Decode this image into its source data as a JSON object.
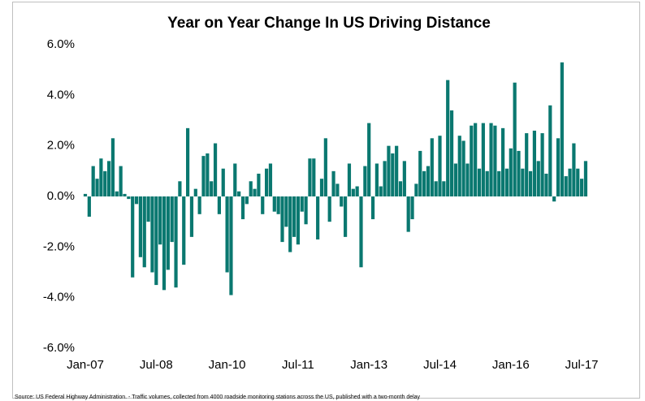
{
  "chart_data": {
    "type": "bar",
    "title": "Year on Year Change In US Driving Distance",
    "source": "Source: US Federal Highway Administration. - Traffic volumes, collected from 4000 roadside monitoring  stations across the US, published with a two-month  delay",
    "color": "#0a7870",
    "categories": [
      "Jan-07",
      null,
      null,
      null,
      null,
      null,
      null,
      null,
      null,
      null,
      null,
      null,
      null,
      null,
      null,
      null,
      null,
      null,
      "Jul-08",
      null,
      null,
      null,
      null,
      null,
      null,
      null,
      null,
      null,
      null,
      null,
      null,
      null,
      null,
      null,
      null,
      null,
      "Jan-10",
      null,
      null,
      null,
      null,
      null,
      null,
      null,
      null,
      null,
      null,
      null,
      null,
      null,
      null,
      null,
      null,
      null,
      "Jul-11",
      null,
      null,
      null,
      null,
      null,
      null,
      null,
      null,
      null,
      null,
      null,
      null,
      null,
      null,
      null,
      null,
      null,
      "Jan-13",
      null,
      null,
      null,
      null,
      null,
      null,
      null,
      null,
      null,
      null,
      null,
      null,
      null,
      null,
      null,
      null,
      null,
      "Jul-14",
      null,
      null,
      null,
      null,
      null,
      null,
      null,
      null,
      null,
      null,
      null,
      null,
      null,
      null,
      null,
      null,
      null,
      "Jan-16",
      null,
      null,
      null,
      null,
      null,
      null,
      null,
      null,
      null,
      null,
      null,
      null,
      null,
      null,
      null,
      null,
      null,
      "Jul-17",
      null
    ],
    "values": [
      0.1,
      -0.8,
      1.2,
      0.7,
      1.5,
      1.0,
      1.4,
      2.3,
      0.2,
      1.2,
      0.1,
      -0.1,
      -3.2,
      -0.3,
      -2.4,
      -2.8,
      -1.0,
      -3.0,
      -3.5,
      -1.9,
      -3.7,
      -2.9,
      -1.8,
      -3.6,
      0.6,
      -2.7,
      2.7,
      -1.6,
      0.3,
      -0.7,
      1.6,
      1.7,
      0.6,
      2.1,
      -0.7,
      1.1,
      -3.0,
      -3.9,
      1.3,
      0.2,
      -0.9,
      -0.3,
      0.6,
      0.3,
      0.9,
      -0.7,
      1.1,
      1.3,
      -0.6,
      -0.7,
      -1.8,
      -1.2,
      -2.2,
      -1.6,
      -1.9,
      -0.6,
      -1.1,
      1.5,
      1.5,
      -1.7,
      0.7,
      2.3,
      -1.0,
      1.0,
      0.5,
      -0.4,
      -1.6,
      1.3,
      0.3,
      0.4,
      -2.8,
      1.2,
      2.9,
      -0.9,
      1.3,
      0.4,
      1.4,
      2.0,
      1.7,
      2.0,
      0.6,
      1.4,
      -1.4,
      -0.9,
      0.5,
      1.8,
      1.0,
      1.2,
      2.3,
      0.6,
      2.4,
      0.6,
      4.6,
      3.4,
      1.3,
      2.4,
      2.2,
      1.3,
      2.8,
      2.9,
      1.1,
      2.9,
      1.0,
      2.9,
      2.8,
      1.0,
      2.7,
      1.1,
      1.9,
      4.5,
      1.8,
      1.1,
      2.5,
      1.0,
      2.6,
      1.4,
      2.5,
      0.9,
      3.6,
      -0.2,
      2.3,
      5.3,
      0.8,
      1.1,
      2.1,
      1.1,
      0.7,
      1.4
    ],
    "ylim": [
      -6,
      6
    ],
    "yticks": [
      {
        "value": -6,
        "label": "-6.0%"
      },
      {
        "value": -4,
        "label": "-4.0%"
      },
      {
        "value": -2,
        "label": "-2.0%"
      },
      {
        "value": 0,
        "label": "0.0%"
      },
      {
        "value": 2,
        "label": "2.0%"
      },
      {
        "value": 4,
        "label": "4.0%"
      },
      {
        "value": 6,
        "label": "6.0%"
      }
    ],
    "grid": false
  }
}
